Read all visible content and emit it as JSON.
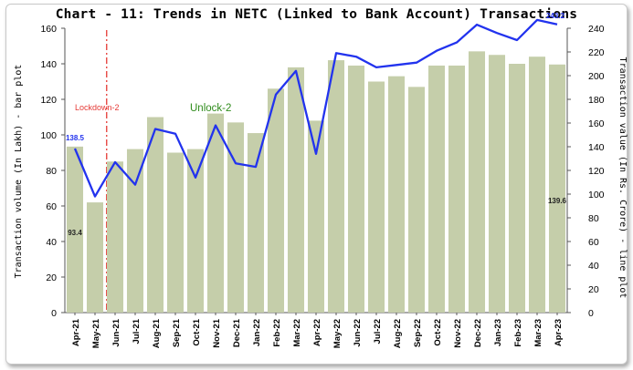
{
  "chart_data": {
    "type": "bar+line",
    "title": "Chart - 11: Trends in NETC (Linked to Bank Account) Transactions",
    "ylabel_left": "Transaction volume (In Lakh) - bar plot",
    "ylabel_right": "Transaction value (In Rs. Crore) - line plot",
    "categories": [
      "Apr-21",
      "May-21",
      "Jun-21",
      "Jul-21",
      "Aug-21",
      "Sep-21",
      "Oct-21",
      "Nov-21",
      "Dec-21",
      "Jan-22",
      "Feb-22",
      "Mar-22",
      "Apr-22",
      "May-22",
      "Jun-22",
      "Jul-22",
      "Aug-22",
      "Sep-22",
      "Oct-22",
      "Nov-22",
      "Dec-22",
      "Jan-23",
      "Feb-23",
      "Mar-23",
      "Apr-23"
    ],
    "bar_series": {
      "values": [
        93.4,
        62,
        85,
        92,
        110,
        90,
        92,
        112,
        107,
        101,
        126,
        138,
        108,
        142,
        139,
        130,
        133,
        127,
        139,
        139,
        147,
        145,
        140,
        144,
        139.6
      ],
      "color": "#c5ceaa"
    },
    "line_series": {
      "values": [
        138.5,
        98,
        127,
        108,
        155,
        151,
        114,
        158,
        126,
        123,
        184,
        204,
        134,
        219,
        216,
        207,
        209,
        211,
        221,
        228,
        243,
        236,
        230,
        247,
        243.2
      ],
      "color": "#2233ee"
    },
    "ylim_left": [
      0,
      160
    ],
    "yticks_left": [
      0,
      20,
      40,
      60,
      80,
      100,
      120,
      140,
      160
    ],
    "ylim_right": [
      0,
      240
    ],
    "yticks_right": [
      0,
      20,
      40,
      60,
      80,
      100,
      120,
      140,
      160,
      180,
      200,
      220,
      240
    ],
    "data_labels": {
      "bar_first": "93.4",
      "bar_last": "139.6",
      "line_first": "138.5",
      "line_last": "243.2"
    },
    "annotations": {
      "lockdown": {
        "text": "Lockdown-2",
        "color": "#e53935"
      },
      "unlock": {
        "text": "Unlock-2",
        "color": "#2e8b1a"
      }
    },
    "lockdown_line_after_category": "May-21",
    "grid": false,
    "legend": "none"
  }
}
